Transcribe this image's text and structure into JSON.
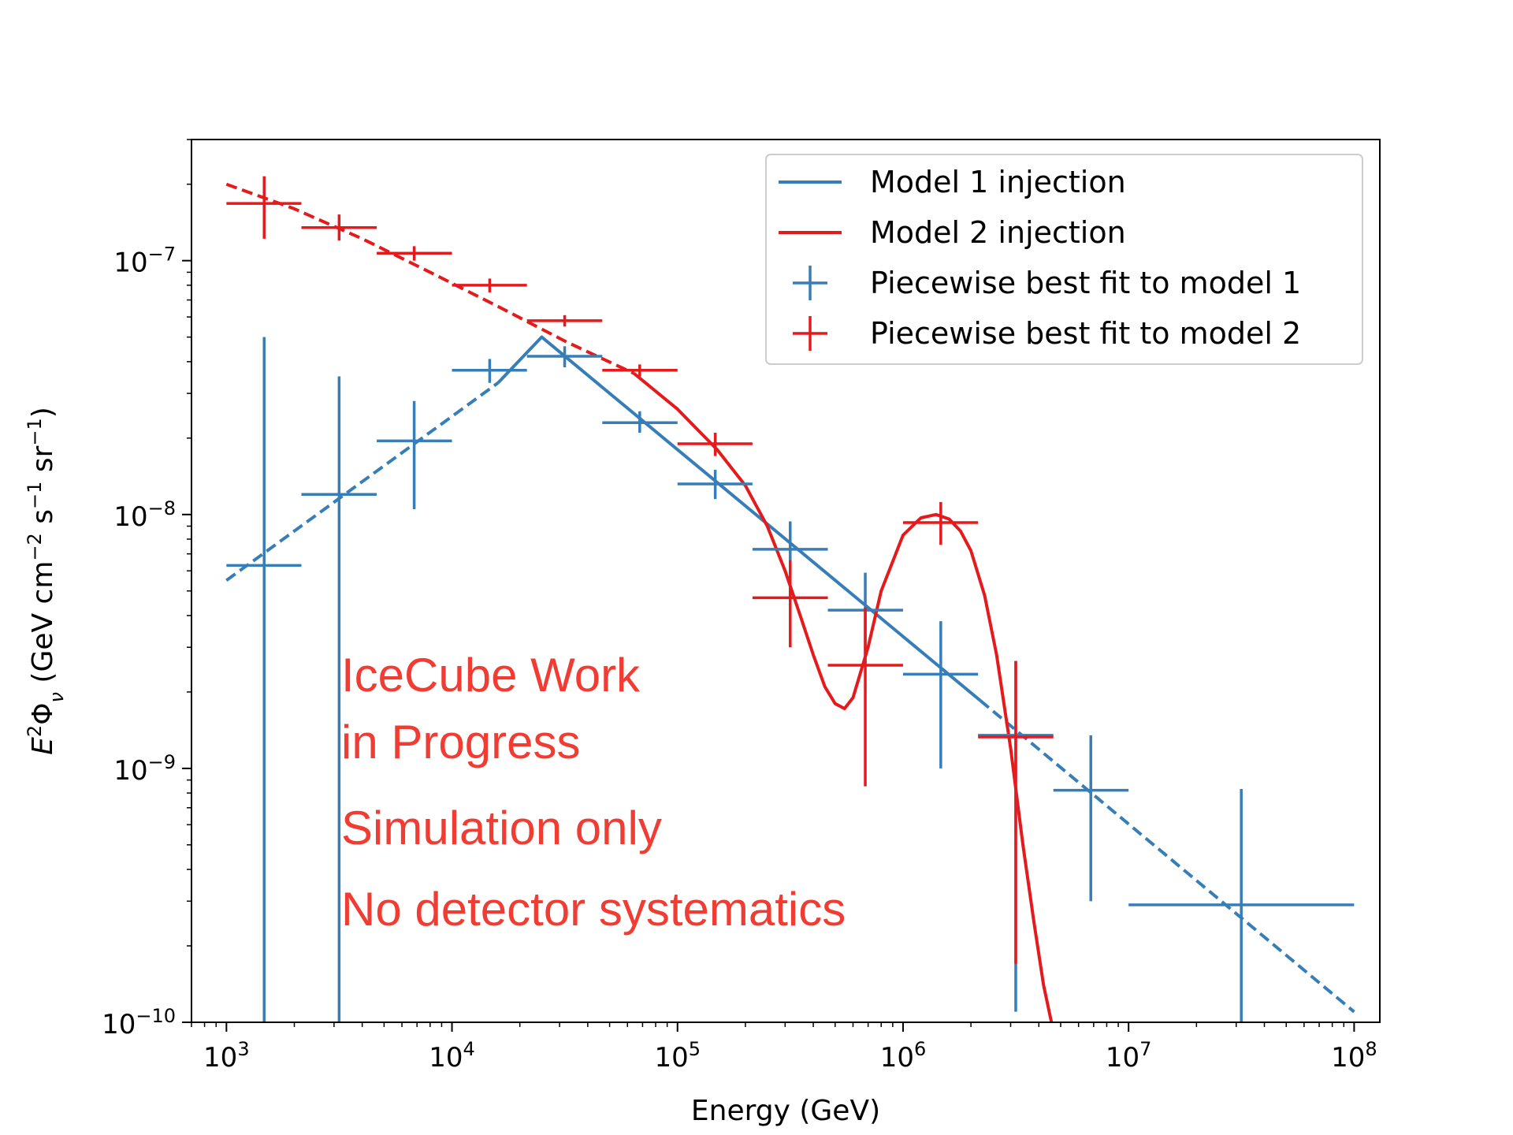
{
  "chart_data": {
    "type": "line",
    "title": "",
    "xlabel": "Energy (GeV)",
    "ylabel": "E²Φ_ν (GeV cm⁻² s⁻¹ sr⁻¹)",
    "ylabel_parts": {
      "e": "E",
      "sup2": "2",
      "phi": "Φ",
      "nu": "ν",
      "rest1": " (GeV cm",
      "m2": "−2",
      "rest2": " s",
      "m1a": "−1",
      "rest3": " sr",
      "m1b": "−1",
      "rest4": ")"
    },
    "x_scale": "log",
    "y_scale": "log",
    "xlim": [
      700,
      130000000
    ],
    "ylim": [
      1e-10,
      3e-07
    ],
    "x_ticks": [
      {
        "exp": 3,
        "base": "10",
        "sup": "3"
      },
      {
        "exp": 4,
        "base": "10",
        "sup": "4"
      },
      {
        "exp": 5,
        "base": "10",
        "sup": "5"
      },
      {
        "exp": 6,
        "base": "10",
        "sup": "6"
      },
      {
        "exp": 7,
        "base": "10",
        "sup": "7"
      },
      {
        "exp": 8,
        "base": "10",
        "sup": "8"
      }
    ],
    "y_ticks": [
      {
        "exp": -10,
        "base": "10",
        "sup": "−10"
      },
      {
        "exp": -9,
        "base": "10",
        "sup": "−9"
      },
      {
        "exp": -8,
        "base": "10",
        "sup": "−8"
      },
      {
        "exp": -7,
        "base": "10",
        "sup": "−7"
      }
    ],
    "colors": {
      "model1": "#377eb8",
      "model2": "#e41a1c",
      "annotation": "#f03c32"
    },
    "series": [
      {
        "name": "Model 1 injection",
        "kind": "line",
        "color": "#377eb8",
        "segments": [
          {
            "style": "dashed",
            "x": [
              1000,
              16000
            ],
            "y": [
              5.5e-09,
              3.3e-08
            ]
          },
          {
            "style": "solid",
            "x": [
              16000,
              25000,
              2200000
            ],
            "y": [
              3.3e-08,
              5e-08,
              1.85e-09
            ]
          },
          {
            "style": "dashed",
            "x": [
              2200000,
              100000000
            ],
            "y": [
              1.85e-09,
              1.1e-10
            ]
          }
        ]
      },
      {
        "name": "Model 2 injection",
        "kind": "line",
        "color": "#e41a1c",
        "segments": [
          {
            "style": "dashed",
            "x": [
              1000,
              2000,
              4000,
              8000,
              16000,
              32000,
              64000
            ],
            "y": [
              2e-07,
              1.6e-07,
              1.22e-07,
              9e-08,
              6.6e-08,
              4.8e-08,
              3.6e-08
            ]
          },
          {
            "style": "solid",
            "x": [
              64000,
              100000,
              150000,
              200000,
              250000,
              300000,
              350000,
              400000,
              450000,
              500000,
              550000,
              600000,
              700000,
              800000,
              1000000,
              1200000,
              1400000,
              1600000,
              1800000,
              2000000,
              2300000,
              2600000,
              3000000,
              3400000,
              3800000,
              4200000,
              4550000
            ],
            "y": [
              3.6e-08,
              2.6e-08,
              1.8e-08,
              1.3e-08,
              9e-09,
              6e-09,
              4e-09,
              2.8e-09,
              2.1e-09,
              1.8e-09,
              1.72e-09,
              1.9e-09,
              3e-09,
              5e-09,
              8.3e-09,
              9.7e-09,
              1e-08,
              9.6e-09,
              8.6e-09,
              7.2e-09,
              4.8e-09,
              2.8e-09,
              1.2e-09,
              5e-10,
              2.5e-10,
              1.4e-10,
              1e-10
            ]
          }
        ]
      },
      {
        "name": "Piecewise best fit to model 1",
        "kind": "errorbar",
        "color": "#377eb8",
        "points": [
          {
            "x": 1470,
            "y": 6.3e-09,
            "xlo": 1000,
            "xhi": 2150,
            "ylo": 1e-10,
            "yhi": 5e-08
          },
          {
            "x": 3160,
            "y": 1.2e-08,
            "xlo": 2150,
            "xhi": 4640,
            "ylo": 1e-10,
            "yhi": 3.5e-08
          },
          {
            "x": 6800,
            "y": 1.95e-08,
            "xlo": 4640,
            "xhi": 10000,
            "ylo": 1.05e-08,
            "yhi": 2.8e-08
          },
          {
            "x": 14700,
            "y": 3.7e-08,
            "xlo": 10000,
            "xhi": 21500,
            "ylo": 3.3e-08,
            "yhi": 4.1e-08
          },
          {
            "x": 31600,
            "y": 4.2e-08,
            "xlo": 21500,
            "xhi": 46400,
            "ylo": 3.8e-08,
            "yhi": 4.6e-08
          },
          {
            "x": 68000,
            "y": 2.3e-08,
            "xlo": 46400,
            "xhi": 100000,
            "ylo": 2.1e-08,
            "yhi": 2.55e-08
          },
          {
            "x": 147000,
            "y": 1.32e-08,
            "xlo": 100000,
            "xhi": 215000,
            "ylo": 1.15e-08,
            "yhi": 1.5e-08
          },
          {
            "x": 316000,
            "y": 7.3e-09,
            "xlo": 215000,
            "xhi": 464000,
            "ylo": 5.8e-09,
            "yhi": 9.4e-09
          },
          {
            "x": 680000,
            "y": 4.2e-09,
            "xlo": 464000,
            "xhi": 1000000,
            "ylo": 2.6e-09,
            "yhi": 5.9e-09
          },
          {
            "x": 1470000,
            "y": 2.35e-09,
            "xlo": 1000000,
            "xhi": 2150000,
            "ylo": 1e-09,
            "yhi": 3.8e-09
          },
          {
            "x": 3160000,
            "y": 1.35e-09,
            "xlo": 2150000,
            "xhi": 4640000,
            "ylo": 1.1e-10,
            "yhi": 2.65e-09
          },
          {
            "x": 6800000,
            "y": 8.2e-10,
            "xlo": 4640000,
            "xhi": 10000000,
            "ylo": 3e-10,
            "yhi": 1.35e-09
          },
          {
            "x": 31600000,
            "y": 2.9e-10,
            "xlo": 10000000,
            "xhi": 100000000,
            "ylo": 1e-10,
            "yhi": 8.3e-10
          }
        ]
      },
      {
        "name": "Piecewise best fit to model 2",
        "kind": "errorbar",
        "color": "#e41a1c",
        "points": [
          {
            "x": 1470,
            "y": 1.68e-07,
            "xlo": 1000,
            "xhi": 2150,
            "ylo": 1.22e-07,
            "yhi": 2.15e-07
          },
          {
            "x": 3160,
            "y": 1.35e-07,
            "xlo": 2150,
            "xhi": 4640,
            "ylo": 1.2e-07,
            "yhi": 1.52e-07
          },
          {
            "x": 6800,
            "y": 1.07e-07,
            "xlo": 4640,
            "xhi": 10000,
            "ylo": 1e-07,
            "yhi": 1.14e-07
          },
          {
            "x": 14700,
            "y": 8e-08,
            "xlo": 10000,
            "xhi": 21500,
            "ylo": 7.5e-08,
            "yhi": 8.5e-08
          },
          {
            "x": 31600,
            "y": 5.8e-08,
            "xlo": 21500,
            "xhi": 46400,
            "ylo": 5.5e-08,
            "yhi": 6.1e-08
          },
          {
            "x": 68000,
            "y": 3.7e-08,
            "xlo": 46400,
            "xhi": 100000,
            "ylo": 3.5e-08,
            "yhi": 3.9e-08
          },
          {
            "x": 147000,
            "y": 1.9e-08,
            "xlo": 100000,
            "xhi": 215000,
            "ylo": 1.7e-08,
            "yhi": 2.1e-08
          },
          {
            "x": 316000,
            "y": 4.7e-09,
            "xlo": 215000,
            "xhi": 464000,
            "ylo": 3e-09,
            "yhi": 6.6e-09
          },
          {
            "x": 680000,
            "y": 2.55e-09,
            "xlo": 464000,
            "xhi": 1000000,
            "ylo": 8.5e-10,
            "yhi": 4.3e-09
          },
          {
            "x": 1470000,
            "y": 9.3e-09,
            "xlo": 1000000,
            "xhi": 2150000,
            "ylo": 7.6e-09,
            "yhi": 1.12e-08
          },
          {
            "x": 3160000,
            "y": 1.33e-09,
            "xlo": 2150000,
            "xhi": 4640000,
            "ylo": 1.7e-10,
            "yhi": 2.65e-09
          }
        ]
      }
    ],
    "legend": {
      "position": "top-right",
      "entries": [
        {
          "label": "Model 1 injection",
          "marker": "line",
          "color": "#377eb8"
        },
        {
          "label": "Model 2 injection",
          "marker": "line",
          "color": "#e41a1c"
        },
        {
          "label": "Piecewise best fit to model 1",
          "marker": "cross",
          "color": "#377eb8"
        },
        {
          "label": "Piecewise best fit to model 2",
          "marker": "cross",
          "color": "#e41a1c"
        }
      ]
    },
    "annotations": [
      {
        "text": "IceCube Work"
      },
      {
        "text": "in Progress"
      },
      {
        "text": "Simulation only"
      },
      {
        "text": "No detector systematics"
      }
    ]
  }
}
